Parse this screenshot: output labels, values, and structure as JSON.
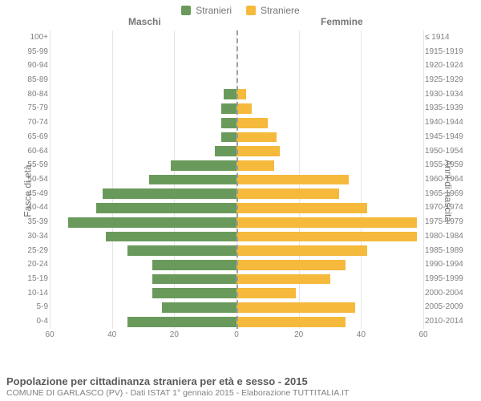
{
  "legend": {
    "male": {
      "label": "Stranieri",
      "color": "#6a9a5b"
    },
    "female": {
      "label": "Straniere",
      "color": "#f5b93c"
    }
  },
  "headers": {
    "male": "Maschi",
    "female": "Femmine"
  },
  "axes": {
    "left_label": "Fasce di età",
    "right_label": "Anni di nascita",
    "xmax": 60,
    "xticks_left": [
      60,
      40,
      20,
      0
    ],
    "xticks_right": [
      0,
      20,
      40,
      60
    ],
    "grid_positions": [
      -60,
      -40,
      -20,
      0,
      20,
      40,
      60
    ]
  },
  "styling": {
    "background": "#ffffff",
    "grid_color": "#e5e5e5",
    "center_line_color": "#9e9e9e",
    "label_color": "#808080",
    "axis_label_color": "#757575",
    "label_fontsize": 10,
    "axis_label_fontsize": 12,
    "bar_height_pct": 72
  },
  "rows": [
    {
      "age": "100+",
      "year": "≤ 1914",
      "m": 0,
      "f": 0
    },
    {
      "age": "95-99",
      "year": "1915-1919",
      "m": 0,
      "f": 0
    },
    {
      "age": "90-94",
      "year": "1920-1924",
      "m": 0,
      "f": 0
    },
    {
      "age": "85-89",
      "year": "1925-1929",
      "m": 0,
      "f": 0
    },
    {
      "age": "80-84",
      "year": "1930-1934",
      "m": 4,
      "f": 3
    },
    {
      "age": "75-79",
      "year": "1935-1939",
      "m": 5,
      "f": 5
    },
    {
      "age": "70-74",
      "year": "1940-1944",
      "m": 5,
      "f": 10
    },
    {
      "age": "65-69",
      "year": "1945-1949",
      "m": 5,
      "f": 13
    },
    {
      "age": "60-64",
      "year": "1950-1954",
      "m": 7,
      "f": 14
    },
    {
      "age": "55-59",
      "year": "1955-1959",
      "m": 21,
      "f": 12
    },
    {
      "age": "50-54",
      "year": "1960-1964",
      "m": 28,
      "f": 36
    },
    {
      "age": "45-49",
      "year": "1965-1969",
      "m": 43,
      "f": 33
    },
    {
      "age": "40-44",
      "year": "1970-1974",
      "m": 45,
      "f": 42
    },
    {
      "age": "35-39",
      "year": "1975-1979",
      "m": 54,
      "f": 58
    },
    {
      "age": "30-34",
      "year": "1980-1984",
      "m": 42,
      "f": 58
    },
    {
      "age": "25-29",
      "year": "1985-1989",
      "m": 35,
      "f": 42
    },
    {
      "age": "20-24",
      "year": "1990-1994",
      "m": 27,
      "f": 35
    },
    {
      "age": "15-19",
      "year": "1995-1999",
      "m": 27,
      "f": 30
    },
    {
      "age": "10-14",
      "year": "2000-2004",
      "m": 27,
      "f": 19
    },
    {
      "age": "5-9",
      "year": "2005-2009",
      "m": 24,
      "f": 38
    },
    {
      "age": "0-4",
      "year": "2010-2014",
      "m": 35,
      "f": 35
    }
  ],
  "footer": {
    "title": "Popolazione per cittadinanza straniera per età e sesso - 2015",
    "subtitle": "COMUNE DI GARLASCO (PV) - Dati ISTAT 1° gennaio 2015 - Elaborazione TUTTITALIA.IT"
  }
}
